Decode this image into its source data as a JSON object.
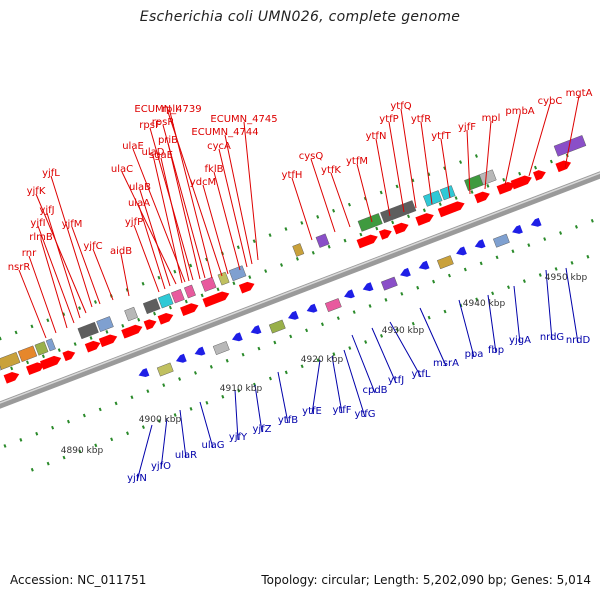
{
  "title": "Escherichia coli UMN026, complete genome",
  "footer": {
    "accession": "Accession: NC_011751",
    "summary": "Topology: circular; Length: 5,202,090 bp; Genes: 5,014"
  },
  "colors": {
    "forward_label": "#dd0000",
    "reverse_label": "#0000aa",
    "forward_gene": "#ff0000",
    "reverse_gene": "#1f1fe6",
    "backbone": "#888888",
    "tick_dot": "#2a8a2a"
  },
  "scale_labels": [
    "4890 kbp",
    "4900 kbp",
    "4910 kbp",
    "4920 kbp",
    "4930 kbp",
    "4940 kbp",
    "4950 kbp"
  ],
  "forward_genes": [
    "nsrR",
    "rnr",
    "rlmB",
    "yjfI",
    "yjfJ",
    "yjfK",
    "yjfL",
    "yjfM",
    "yjfC",
    "aidB",
    "yjfP",
    "ulaA",
    "ulaB",
    "ulaC",
    "ulaD",
    "ulaE",
    "sgaE",
    "rpsF",
    "priB",
    "rpsR",
    "rplI",
    "ECUMN_4739",
    "ydcM",
    "fklB",
    "cycA",
    "ECUMN_4744",
    "ECUMN_4745",
    "ytfH",
    "cysQ",
    "ytfK",
    "ytfM",
    "ytfN",
    "ytfP",
    "ytfQ",
    "ytfR",
    "ytfT",
    "yjfF",
    "mpl",
    "pmbA",
    "cybC",
    "mgtA"
  ],
  "reverse_genes": [
    "yjfN",
    "yjfO",
    "ulaR",
    "ulaG",
    "yjfY",
    "yjfZ",
    "ytfB",
    "ytfE",
    "ytfF",
    "ytfG",
    "cpdB",
    "ytfJ",
    "ytfL",
    "msrA",
    "ppa",
    "fbp",
    "yjgA",
    "nrdG",
    "nrdD"
  ]
}
